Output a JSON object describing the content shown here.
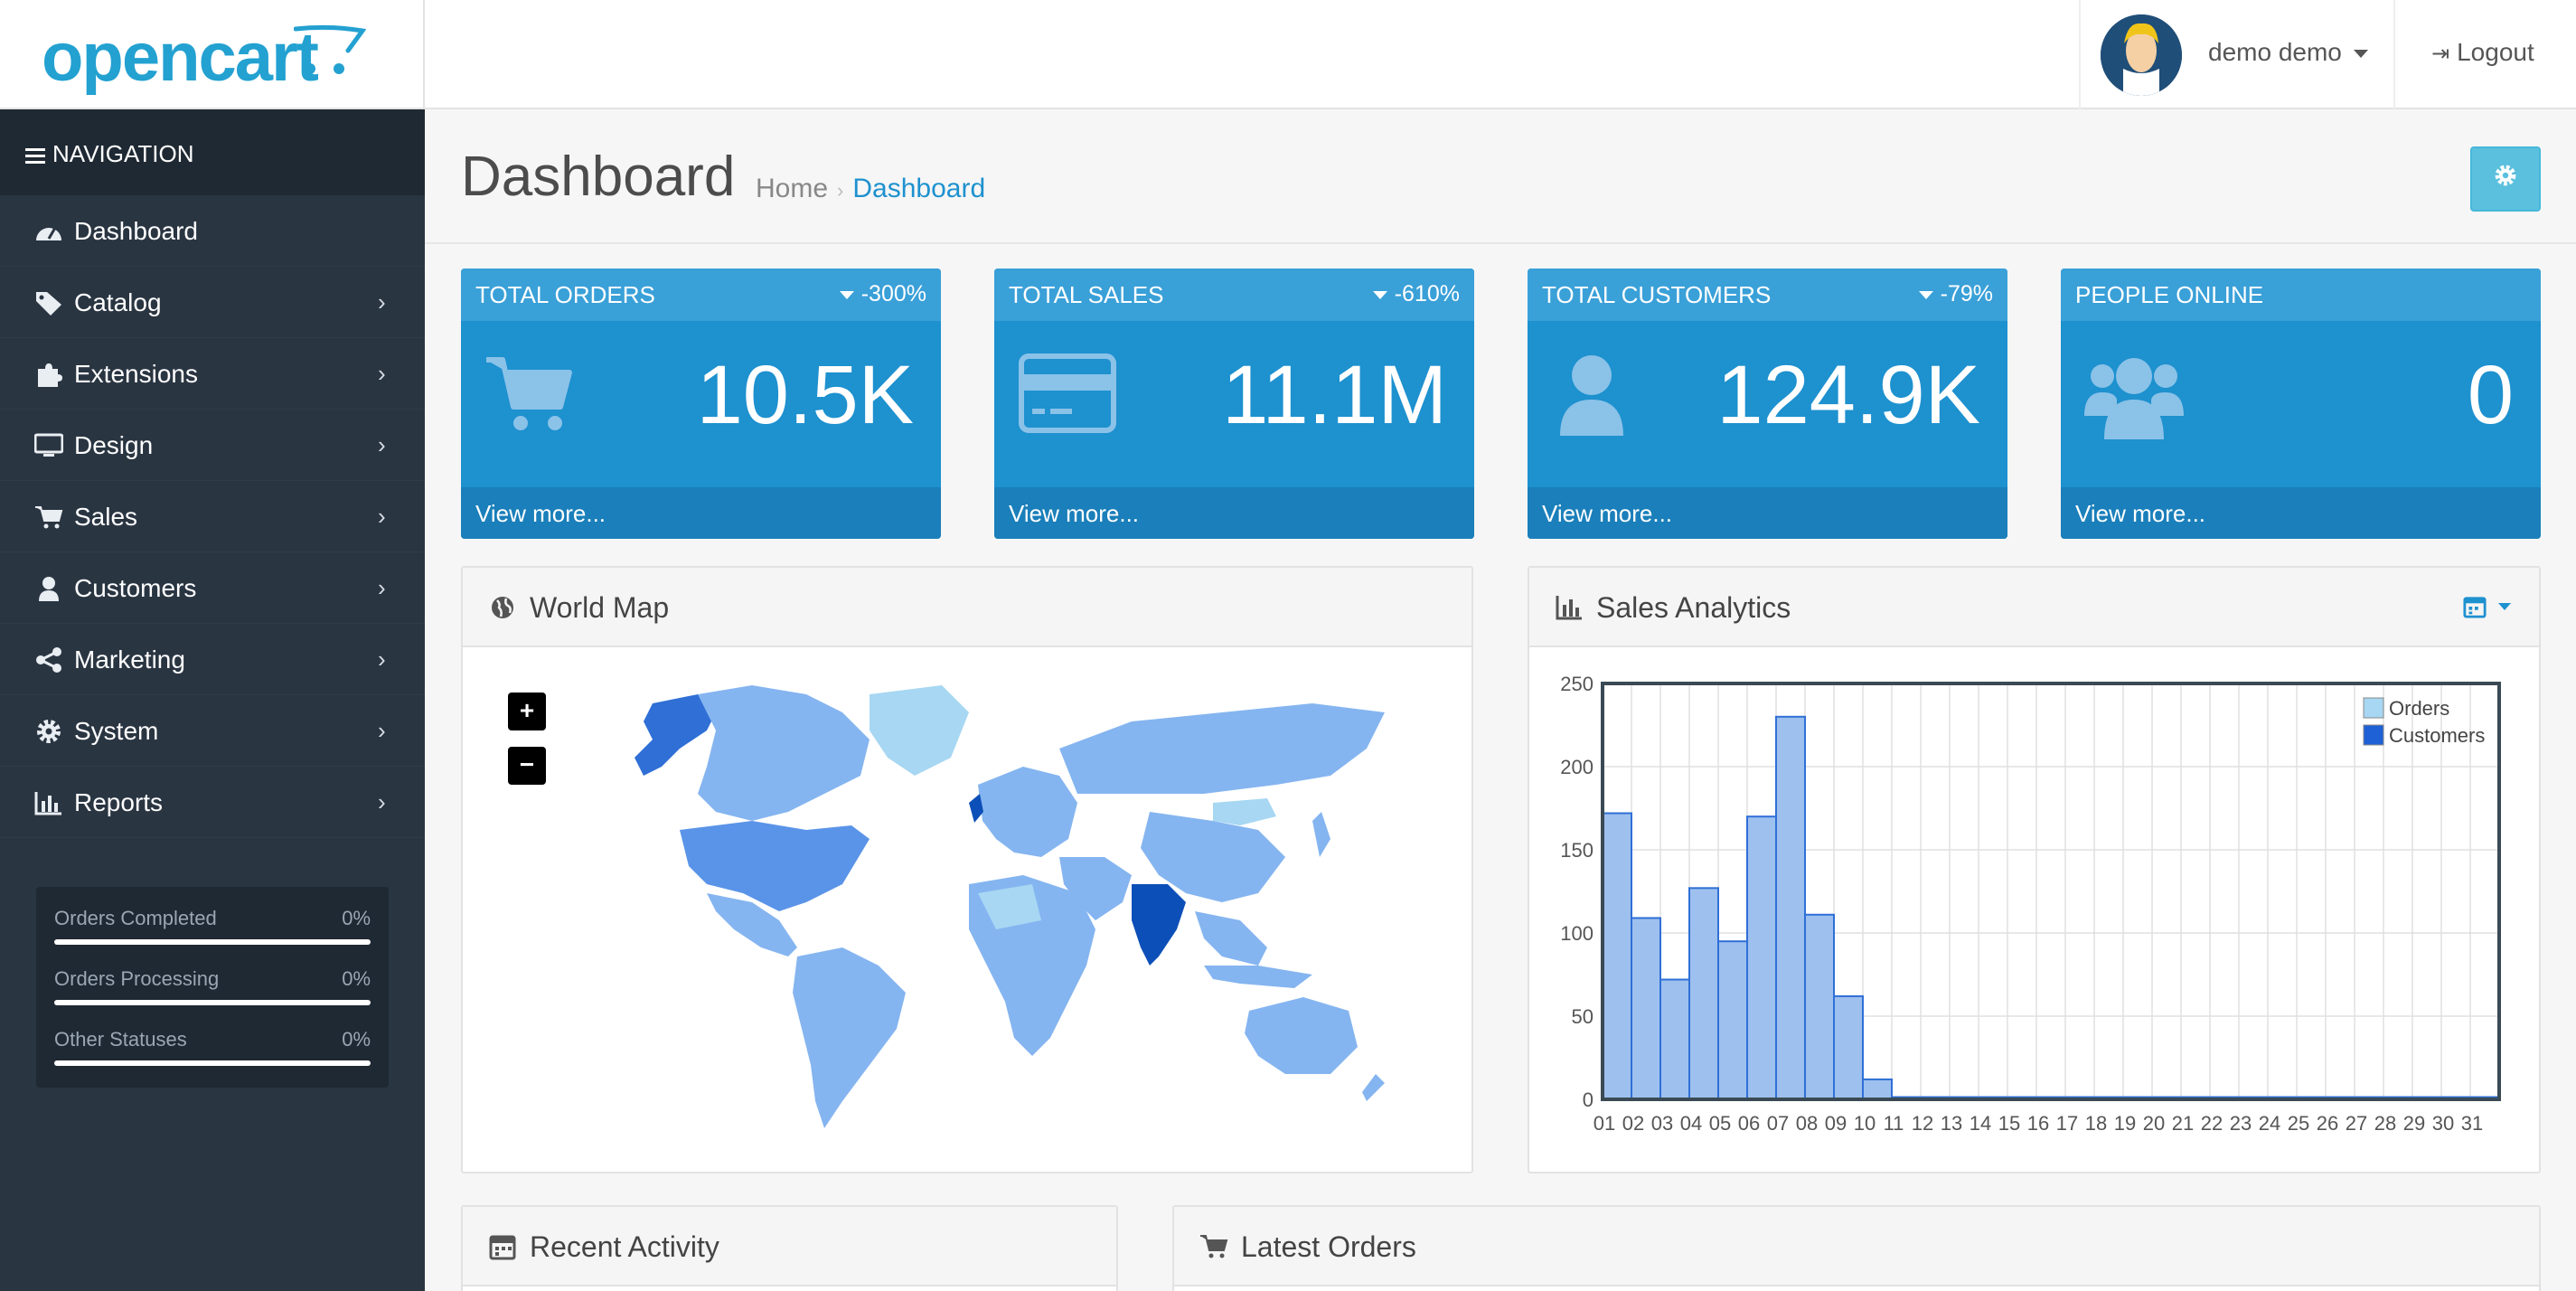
{
  "header": {
    "logo": "opencart",
    "user_name": "demo demo",
    "logout_label": "Logout"
  },
  "sidebar": {
    "title": "NAVIGATION",
    "items": [
      {
        "label": "Dashboard",
        "icon": "dashboard-icon",
        "has_children": false
      },
      {
        "label": "Catalog",
        "icon": "tag-icon",
        "has_children": true
      },
      {
        "label": "Extensions",
        "icon": "puzzle-icon",
        "has_children": true
      },
      {
        "label": "Design",
        "icon": "monitor-icon",
        "has_children": true
      },
      {
        "label": "Sales",
        "icon": "cart-icon",
        "has_children": true
      },
      {
        "label": "Customers",
        "icon": "user-icon",
        "has_children": true
      },
      {
        "label": "Marketing",
        "icon": "share-icon",
        "has_children": true
      },
      {
        "label": "System",
        "icon": "gear-icon",
        "has_children": true
      },
      {
        "label": "Reports",
        "icon": "bar-chart-icon",
        "has_children": true
      }
    ],
    "stats": [
      {
        "label": "Orders Completed",
        "value": "0%",
        "progress": 0
      },
      {
        "label": "Orders Processing",
        "value": "0%",
        "progress": 0
      },
      {
        "label": "Other Statuses",
        "value": "0%",
        "progress": 0
      }
    ]
  },
  "page": {
    "title": "Dashboard",
    "breadcrumb": [
      "Home",
      "Dashboard"
    ]
  },
  "tiles": [
    {
      "title": "TOTAL ORDERS",
      "change": "-300%",
      "value": "10.5K",
      "footer": "View more...",
      "icon": "cart-icon"
    },
    {
      "title": "TOTAL SALES",
      "change": "-610%",
      "value": "11.1M",
      "footer": "View more...",
      "icon": "credit-card-icon"
    },
    {
      "title": "TOTAL CUSTOMERS",
      "change": "-79%",
      "value": "124.9K",
      "footer": "View more...",
      "icon": "user-icon"
    },
    {
      "title": "PEOPLE ONLINE",
      "change": "",
      "value": "0",
      "footer": "View more...",
      "icon": "users-icon"
    }
  ],
  "panels": {
    "world_map": "World Map",
    "sales_analytics": "Sales Analytics",
    "recent_activity": "Recent Activity",
    "latest_orders": "Latest Orders"
  },
  "colors": {
    "primary": "#1e91cf",
    "sidebar": "#2a3542",
    "tile": "#1e91cf",
    "info_button": "#5bc0de"
  },
  "chart_data": {
    "type": "bar",
    "categories": [
      "01",
      "02",
      "03",
      "04",
      "05",
      "06",
      "07",
      "08",
      "09",
      "10",
      "11",
      "12",
      "13",
      "14",
      "15",
      "16",
      "17",
      "18",
      "19",
      "20",
      "21",
      "22",
      "23",
      "24",
      "25",
      "26",
      "27",
      "28",
      "29",
      "30",
      "31"
    ],
    "series": [
      {
        "name": "Orders",
        "values": [
          172,
          109,
          72,
          127,
          95,
          170,
          230,
          111,
          62,
          12,
          0,
          0,
          0,
          0,
          0,
          0,
          0,
          0,
          0,
          0,
          0,
          0,
          0,
          0,
          0,
          0,
          0,
          0,
          0,
          0,
          0
        ]
      },
      {
        "name": "Customers",
        "values": [
          0,
          0,
          0,
          0,
          0,
          0,
          0,
          0,
          0,
          0,
          0,
          0,
          0,
          0,
          0,
          0,
          0,
          0,
          0,
          0,
          0,
          0,
          0,
          0,
          0,
          0,
          0,
          0,
          0,
          0,
          0
        ]
      }
    ],
    "ylim": [
      0,
      250
    ],
    "yticks": [
      0,
      50,
      100,
      150,
      200,
      250
    ],
    "grid": true,
    "legend": "top-right"
  }
}
